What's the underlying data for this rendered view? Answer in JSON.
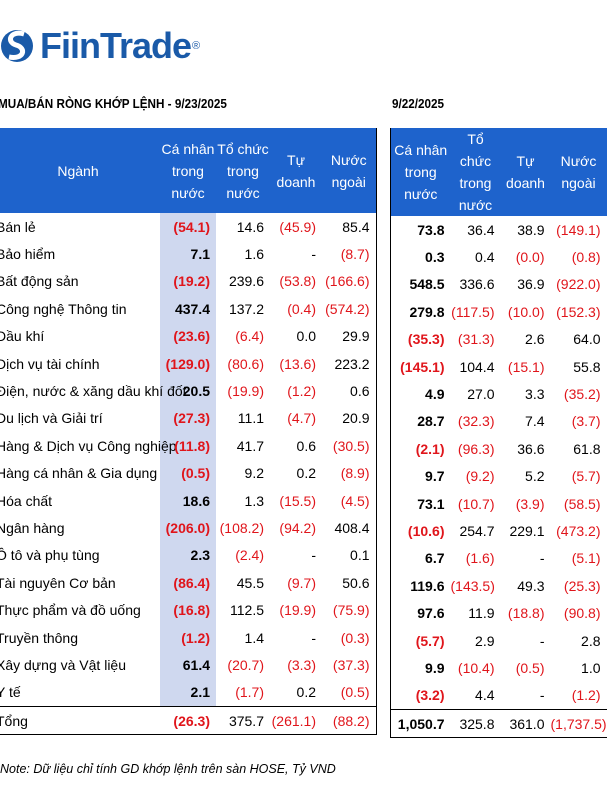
{
  "brand": {
    "name": "FiinTrade",
    "reg": "®",
    "color": "#1a5aa8"
  },
  "left_title": "MUA/BÁN RÒNG KHỚP LỆNH - 9/23/2025",
  "right_title": "9/22/2025",
  "left_headers": [
    "Ngành",
    "Cá nhân trong nước",
    "Tổ chức trong nước",
    "Tự doanh",
    "Nước ngoài"
  ],
  "right_headers": [
    "Cá nhân trong nước",
    "Tổ chức trong nước",
    "Tự doanh",
    "Nước ngoài"
  ],
  "rows": [
    {
      "sector": "Bán lẻ",
      "d1": [
        "(54.1)",
        "14.6",
        "(45.9)",
        "85.4"
      ],
      "d2": [
        "73.8",
        "36.4",
        "38.9",
        "(149.1)"
      ]
    },
    {
      "sector": "Bảo hiểm",
      "d1": [
        "7.1",
        "1.6",
        "-",
        "(8.7)"
      ],
      "d2": [
        "0.3",
        "0.4",
        "(0.0)",
        "(0.8)"
      ]
    },
    {
      "sector": "Bất động sản",
      "d1": [
        "(19.2)",
        "239.6",
        "(53.8)",
        "(166.6)"
      ],
      "d2": [
        "548.5",
        "336.6",
        "36.9",
        "(922.0)"
      ]
    },
    {
      "sector": "Công nghệ Thông tin",
      "d1": [
        "437.4",
        "137.2",
        "(0.4)",
        "(574.2)"
      ],
      "d2": [
        "279.8",
        "(117.5)",
        "(10.0)",
        "(152.3)"
      ]
    },
    {
      "sector": "Dầu khí",
      "d1": [
        "(23.6)",
        "(6.4)",
        "0.0",
        "29.9"
      ],
      "d2": [
        "(35.3)",
        "(31.3)",
        "2.6",
        "64.0"
      ]
    },
    {
      "sector": "Dịch vụ tài chính",
      "d1": [
        "(129.0)",
        "(80.6)",
        "(13.6)",
        "223.2"
      ],
      "d2": [
        "(145.1)",
        "104.4",
        "(15.1)",
        "55.8"
      ]
    },
    {
      "sector": "Điện, nước & xăng dầu khí đốt",
      "d1": [
        "20.5",
        "(19.9)",
        "(1.2)",
        "0.6"
      ],
      "d2": [
        "4.9",
        "27.0",
        "3.3",
        "(35.2)"
      ]
    },
    {
      "sector": "Du lịch và Giải trí",
      "d1": [
        "(27.3)",
        "11.1",
        "(4.7)",
        "20.9"
      ],
      "d2": [
        "28.7",
        "(32.3)",
        "7.4",
        "(3.7)"
      ]
    },
    {
      "sector": "Hàng & Dịch vụ Công nghiệp",
      "d1": [
        "(11.8)",
        "41.7",
        "0.6",
        "(30.5)"
      ],
      "d2": [
        "(2.1)",
        "(96.3)",
        "36.6",
        "61.8"
      ]
    },
    {
      "sector": "Hàng cá nhân & Gia dụng",
      "d1": [
        "(0.5)",
        "9.2",
        "0.2",
        "(8.9)"
      ],
      "d2": [
        "9.7",
        "(9.2)",
        "5.2",
        "(5.7)"
      ]
    },
    {
      "sector": "Hóa chất",
      "d1": [
        "18.6",
        "1.3",
        "(15.5)",
        "(4.5)"
      ],
      "d2": [
        "73.1",
        "(10.7)",
        "(3.9)",
        "(58.5)"
      ]
    },
    {
      "sector": "Ngân hàng",
      "d1": [
        "(206.0)",
        "(108.2)",
        "(94.2)",
        "408.4"
      ],
      "d2": [
        "(10.6)",
        "254.7",
        "229.1",
        "(473.2)"
      ]
    },
    {
      "sector": "Ô tô và phụ tùng",
      "d1": [
        "2.3",
        "(2.4)",
        "-",
        "0.1"
      ],
      "d2": [
        "6.7",
        "(1.6)",
        "-",
        "(5.1)"
      ]
    },
    {
      "sector": "Tài nguyên Cơ bản",
      "d1": [
        "(86.4)",
        "45.5",
        "(9.7)",
        "50.6"
      ],
      "d2": [
        "119.6",
        "(143.5)",
        "49.3",
        "(25.3)"
      ]
    },
    {
      "sector": "Thực phẩm và đồ uống",
      "d1": [
        "(16.8)",
        "112.5",
        "(19.9)",
        "(75.9)"
      ],
      "d2": [
        "97.6",
        "11.9",
        "(18.8)",
        "(90.8)"
      ]
    },
    {
      "sector": "Truyền thông",
      "d1": [
        "(1.2)",
        "1.4",
        "-",
        "(0.3)"
      ],
      "d2": [
        "(5.7)",
        "2.9",
        "-",
        "2.8"
      ]
    },
    {
      "sector": "Xây dựng và Vật liệu",
      "d1": [
        "61.4",
        "(20.7)",
        "(3.3)",
        "(37.3)"
      ],
      "d2": [
        "9.9",
        "(10.4)",
        "(0.5)",
        "1.0"
      ]
    },
    {
      "sector": "Y tế",
      "d1": [
        "2.1",
        "(1.7)",
        "0.2",
        "(0.5)"
      ],
      "d2": [
        "(3.2)",
        "4.4",
        "-",
        "(1.2)"
      ]
    }
  ],
  "total": {
    "sector": "Tổng",
    "d1": [
      "(26.3)",
      "375.7",
      "(261.1)",
      "(88.2)"
    ],
    "d2": [
      "1,050.7",
      "325.8",
      "361.0",
      "(1,737.5)"
    ]
  },
  "note": "Note: Dữ liệu chỉ tính GD khớp lệnh trên sàn HOSE, Tỷ VND",
  "colors": {
    "header_bg": "#1e63cc",
    "highlight": "#cfd8ef",
    "negative": "#e0151b"
  }
}
